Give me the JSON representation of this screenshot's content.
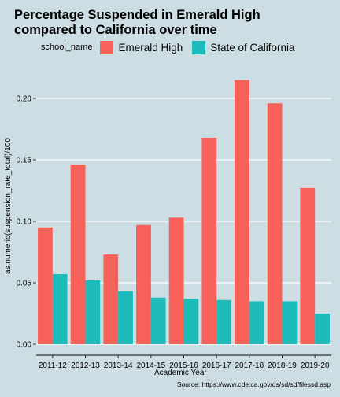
{
  "chart_data": {
    "type": "bar",
    "title_lines": [
      "Percentage Suspended in Emerald High",
      "compared to California over time"
    ],
    "xlabel": "Academic Year",
    "ylabel": "as.numeric(suspension_rate_total)/100",
    "caption": "Source: https://www.cde.ca.gov/ds/sd/sd/filessd.asp",
    "legend": {
      "title": "school_name",
      "placement": "top",
      "entries": [
        "Emerald High",
        "State of California"
      ]
    },
    "categories": [
      "2011-12",
      "2012-13",
      "2013-14",
      "2014-15",
      "2015-16",
      "2016-17",
      "2017-18",
      "2018-19",
      "2019-20"
    ],
    "series": [
      {
        "name": "Emerald High",
        "color": "#f8605a",
        "values": [
          0.095,
          0.146,
          0.073,
          0.097,
          0.103,
          0.168,
          0.215,
          0.196,
          0.127
        ]
      },
      {
        "name": "State of California",
        "color": "#1ebbbb",
        "values": [
          0.057,
          0.052,
          0.043,
          0.038,
          0.037,
          0.036,
          0.035,
          0.035,
          0.025
        ]
      }
    ],
    "yticks": [
      "0.00",
      "0.05",
      "0.10",
      "0.15",
      "0.20"
    ],
    "ytick_values": [
      0,
      0.05,
      0.1,
      0.15,
      0.2
    ],
    "ylim": [
      0,
      0.225
    ],
    "grid": true,
    "background": "#cddde4",
    "gridline_color": "#ffffff"
  }
}
